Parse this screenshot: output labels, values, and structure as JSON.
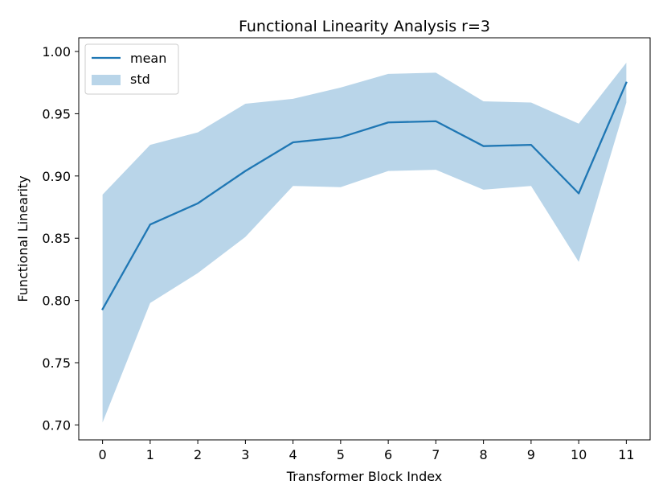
{
  "chart_data": {
    "type": "line",
    "title": "Functional Linearity Analysis r=3",
    "xlabel": "Transformer Block Index",
    "ylabel": "Functional Linearity",
    "x": [
      0,
      1,
      2,
      3,
      4,
      5,
      6,
      7,
      8,
      9,
      10,
      11
    ],
    "xticks": [
      "0",
      "1",
      "2",
      "3",
      "4",
      "5",
      "6",
      "7",
      "8",
      "9",
      "10",
      "11"
    ],
    "yticks": [
      "0.70",
      "0.75",
      "0.80",
      "0.85",
      "0.90",
      "0.95",
      "1.00"
    ],
    "xlim": [
      -0.5,
      11.5
    ],
    "ylim": [
      0.688,
      1.011
    ],
    "grid": false,
    "legend_position": "upper-left",
    "series": [
      {
        "name": "mean",
        "kind": "line",
        "color": "#1f77b4",
        "values": [
          0.793,
          0.861,
          0.878,
          0.904,
          0.927,
          0.931,
          0.943,
          0.944,
          0.924,
          0.925,
          0.886,
          0.975
        ]
      },
      {
        "name": "std",
        "kind": "band",
        "color": "#b9d5e9",
        "lower": [
          0.702,
          0.798,
          0.822,
          0.851,
          0.892,
          0.891,
          0.904,
          0.905,
          0.889,
          0.892,
          0.831,
          0.959
        ],
        "upper": [
          0.885,
          0.925,
          0.935,
          0.958,
          0.962,
          0.971,
          0.982,
          0.983,
          0.96,
          0.959,
          0.942,
          0.991
        ]
      }
    ]
  }
}
